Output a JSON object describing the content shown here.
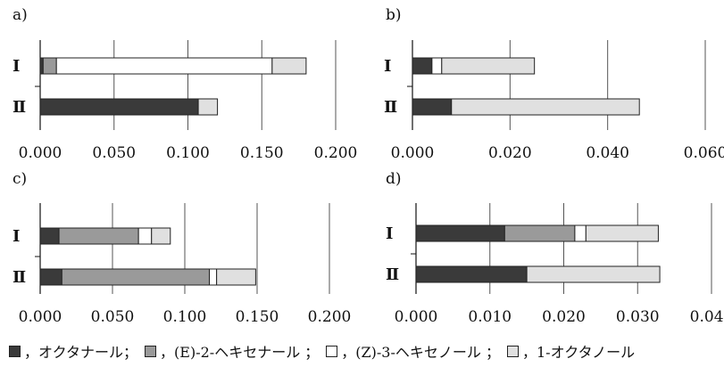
{
  "colors": {
    "octanal": "#3a3a3a",
    "hexenal": "#9a9a9a",
    "hexenol": "#ffffff",
    "octanol": "#e0e0e0"
  },
  "legend": [
    {
      "key": "octanal",
      "label": "，オクタナール；"
    },
    {
      "key": "hexenal",
      "label": "，(E)-2-ヘキセナール ；"
    },
    {
      "key": "hexenol",
      "label": "，(Z)-3-ヘキセノール ；"
    },
    {
      "key": "octanol",
      "label": "，1-オクタノール"
    }
  ],
  "chart_data": [
    {
      "type": "bar",
      "orientation": "horizontal",
      "stacked": true,
      "panel_label": "a)",
      "categories": [
        "Ⅰ",
        "Ⅱ"
      ],
      "xlim": [
        0,
        0.2
      ],
      "ticks": [
        "0.000",
        "0.050",
        "0.100",
        "0.150",
        "0.200"
      ],
      "tick_values": [
        0,
        0.05,
        0.1,
        0.15,
        0.2
      ],
      "series": [
        {
          "key": "octanal",
          "values": [
            0.002,
            0.107
          ]
        },
        {
          "key": "hexenal",
          "values": [
            0.009,
            0.0
          ]
        },
        {
          "key": "hexenol",
          "values": [
            0.146,
            0.0
          ]
        },
        {
          "key": "octanol",
          "values": [
            0.023,
            0.013
          ]
        }
      ]
    },
    {
      "type": "bar",
      "orientation": "horizontal",
      "stacked": true,
      "panel_label": "b)",
      "categories": [
        "Ⅰ",
        "Ⅱ"
      ],
      "xlim": [
        0,
        0.06
      ],
      "ticks": [
        "0.000",
        "0.020",
        "0.040",
        "0.060"
      ],
      "tick_values": [
        0,
        0.02,
        0.04,
        0.06
      ],
      "series": [
        {
          "key": "octanal",
          "values": [
            0.004,
            0.008
          ]
        },
        {
          "key": "hexenal",
          "values": [
            0.0,
            0.0
          ]
        },
        {
          "key": "hexenol",
          "values": [
            0.002,
            0.0
          ]
        },
        {
          "key": "octanol",
          "values": [
            0.019,
            0.0385
          ]
        }
      ]
    },
    {
      "type": "bar",
      "orientation": "horizontal",
      "stacked": true,
      "panel_label": "c)",
      "categories": [
        "Ⅰ",
        "Ⅱ"
      ],
      "xlim": [
        0,
        0.2
      ],
      "ticks": [
        "0.000",
        "0.050",
        "0.100",
        "0.150",
        "0.200"
      ],
      "tick_values": [
        0,
        0.05,
        0.1,
        0.15,
        0.2
      ],
      "series": [
        {
          "key": "octanal",
          "values": [
            0.013,
            0.015
          ]
        },
        {
          "key": "hexenal",
          "values": [
            0.055,
            0.102
          ]
        },
        {
          "key": "hexenol",
          "values": [
            0.009,
            0.005
          ]
        },
        {
          "key": "octanol",
          "values": [
            0.013,
            0.027
          ]
        }
      ]
    },
    {
      "type": "bar",
      "orientation": "horizontal",
      "stacked": true,
      "panel_label": "d)",
      "categories": [
        "Ⅰ",
        "Ⅱ"
      ],
      "xlim": [
        0,
        0.04
      ],
      "ticks": [
        "0.000",
        "0.010",
        "0.020",
        "0.030",
        "0.040"
      ],
      "tick_values": [
        0,
        0.01,
        0.02,
        0.03,
        0.04
      ],
      "series": [
        {
          "key": "octanal",
          "values": [
            0.012,
            0.015
          ]
        },
        {
          "key": "hexenal",
          "values": [
            0.0095,
            0.0
          ]
        },
        {
          "key": "hexenol",
          "values": [
            0.0015,
            0.0
          ]
        },
        {
          "key": "octanol",
          "values": [
            0.0098,
            0.018
          ]
        }
      ]
    }
  ]
}
